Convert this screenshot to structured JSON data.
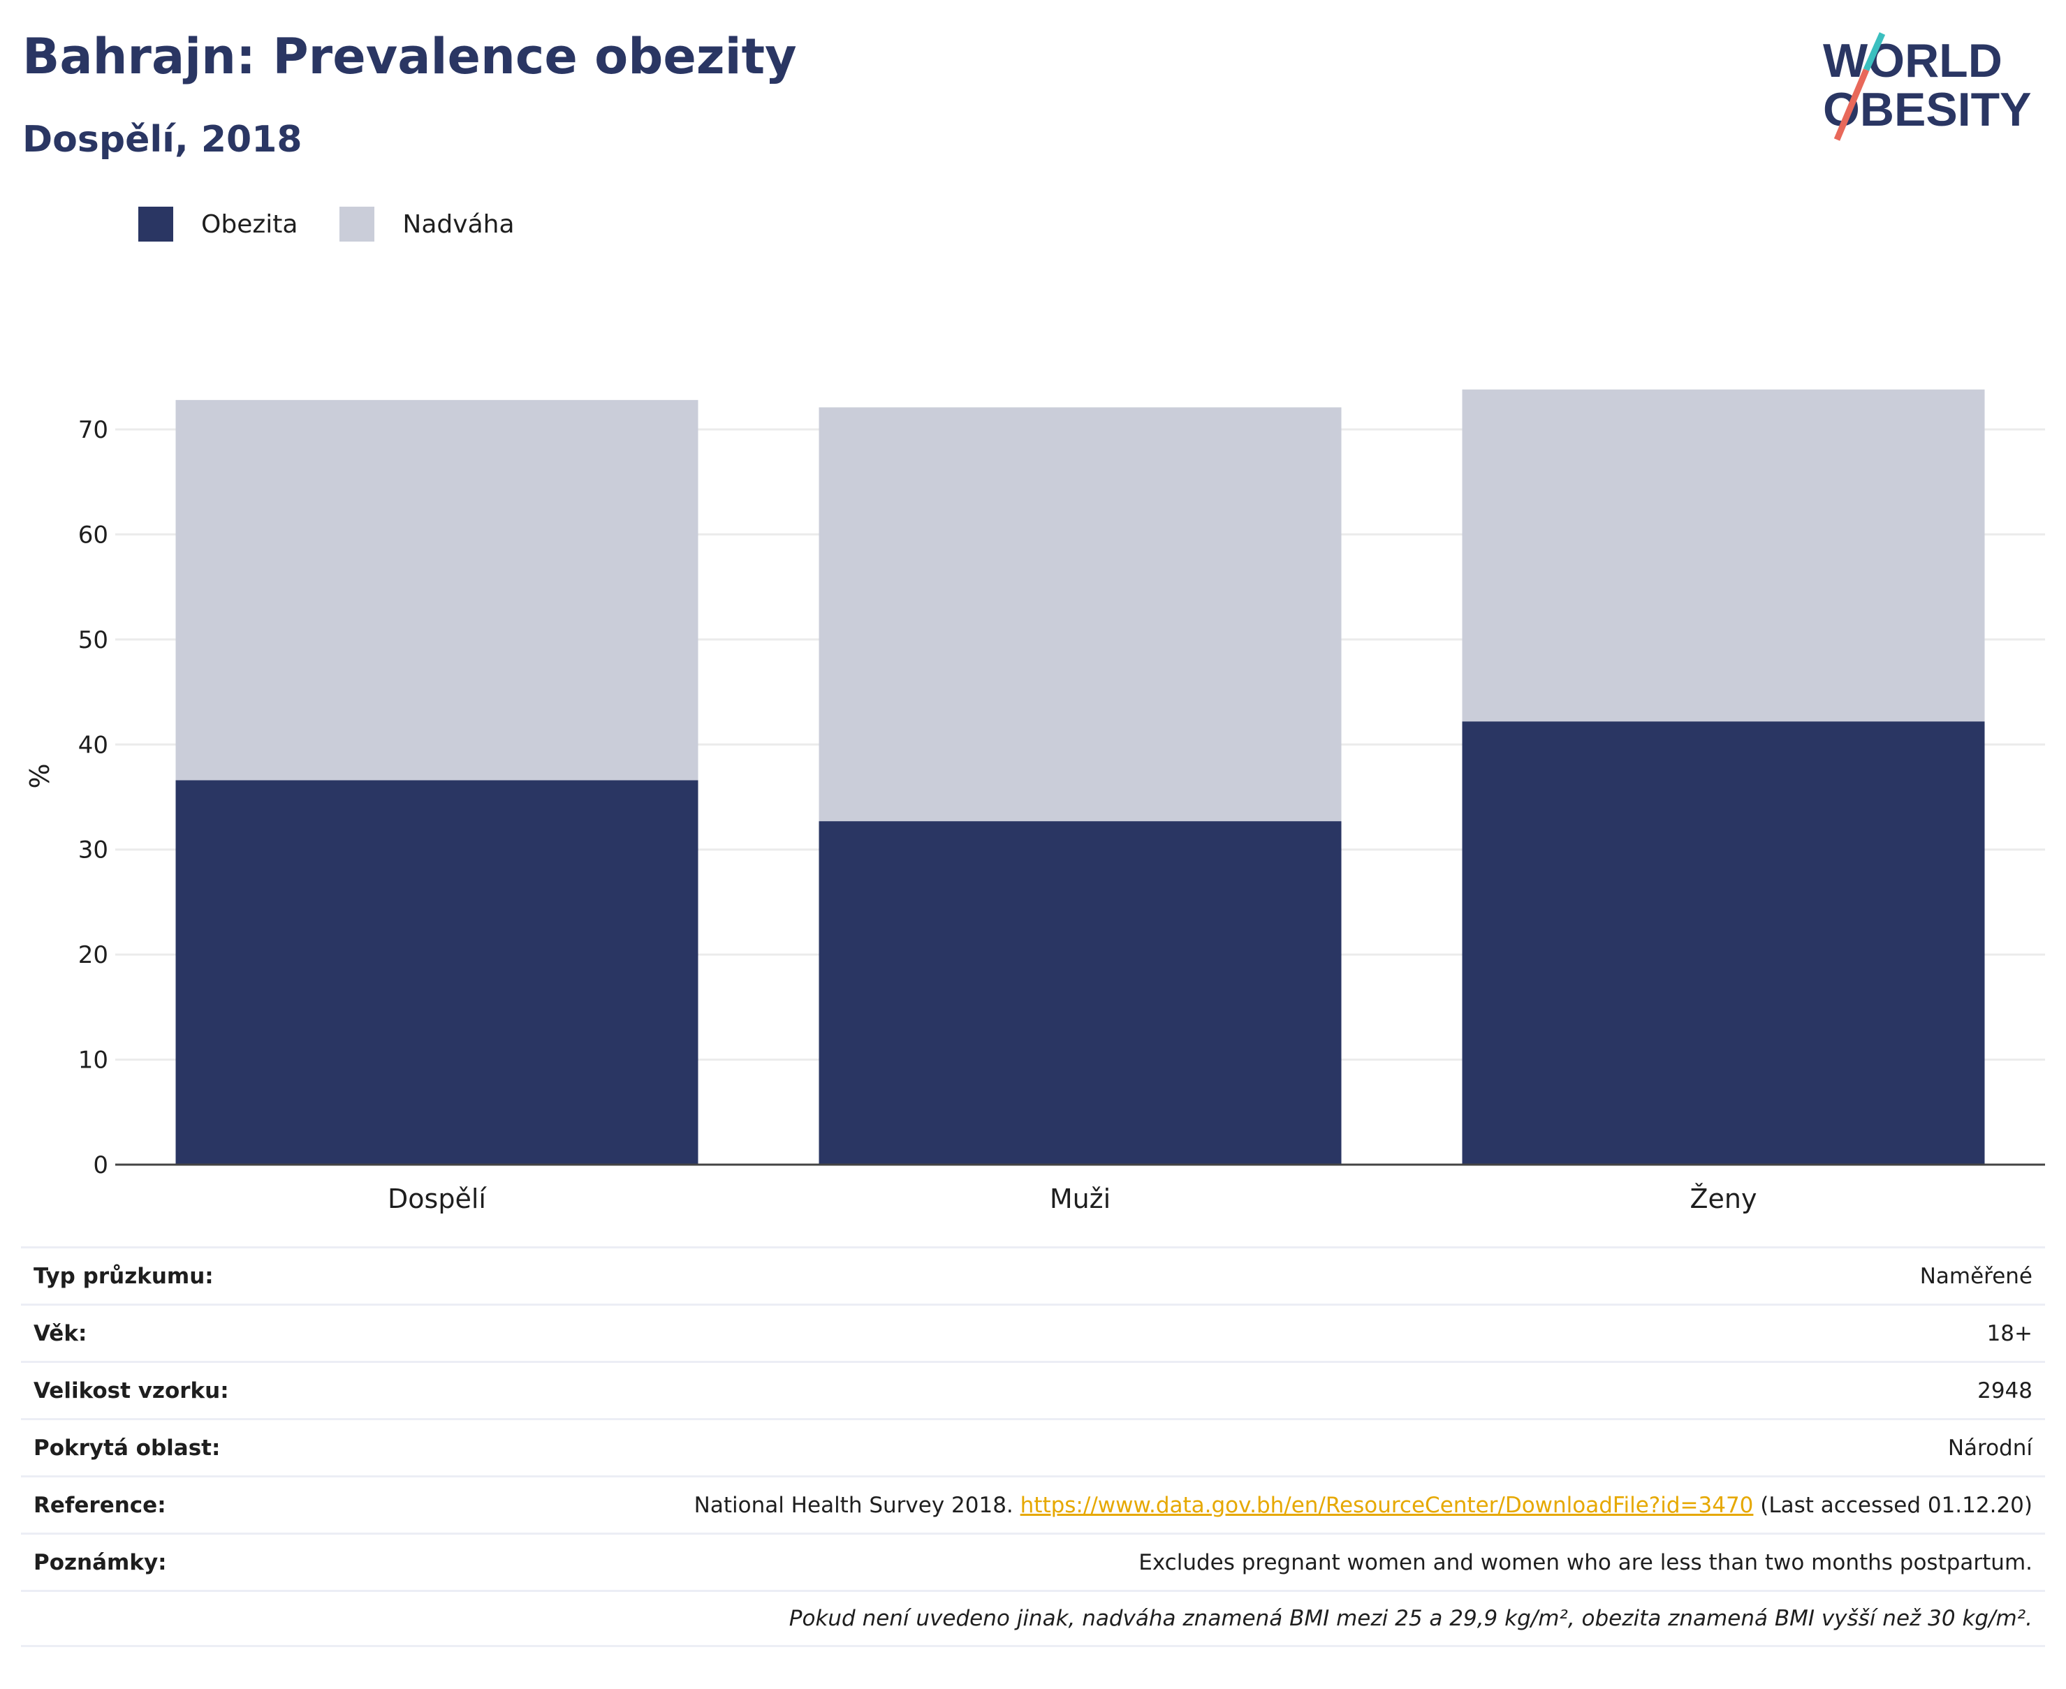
{
  "header": {
    "title": "Bahrajn: Prevalence obezity",
    "subtitle": "Dospělí, 2018"
  },
  "logo": {
    "line1": "WORLD",
    "line2": "OBESITY"
  },
  "colors": {
    "obesity": "#2a3663",
    "overweight": "#cacdd9",
    "accent_red": "#e8685a",
    "accent_teal": "#3bbfbf",
    "link": "#e6a800"
  },
  "chart_data": {
    "type": "bar",
    "stacked": true,
    "categories": [
      "Dospělí",
      "Muži",
      "Ženy"
    ],
    "series": [
      {
        "name": "Obezita",
        "values": [
          36.6,
          32.7,
          42.2
        ]
      },
      {
        "name": "Nadváha",
        "values": [
          36.2,
          39.4,
          31.6
        ]
      }
    ],
    "title": "",
    "xlabel": "",
    "ylabel": "%",
    "ylim": [
      0,
      75
    ],
    "yticks": [
      0,
      10,
      20,
      30,
      40,
      50,
      60,
      70
    ],
    "grid": true,
    "legend_position": "top-left"
  },
  "info": {
    "rows": [
      {
        "label": "Typ průzkumu:",
        "value": "Naměřené"
      },
      {
        "label": "Věk:",
        "value": "18+"
      },
      {
        "label": "Velikost vzorku:",
        "value": "2948"
      },
      {
        "label": "Pokrytá oblast:",
        "value": "Národní"
      }
    ],
    "reference": {
      "label": "Reference:",
      "prefix": "National Health Survey 2018.",
      "link": "https://www.data.gov.bh/en/ResourceCenter/DownloadFile?id=3470",
      "suffix": "(Last accessed 01.12.20)"
    },
    "notes": {
      "label": "Poznámky:",
      "value": "Excludes pregnant women and women who are less than two months postpartum."
    },
    "footnote": "Pokud není uvedeno jinak, nadváha znamená BMI mezi 25 a 29,9 kg/m², obezita znamená BMI vyšší než 30 kg/m²."
  }
}
